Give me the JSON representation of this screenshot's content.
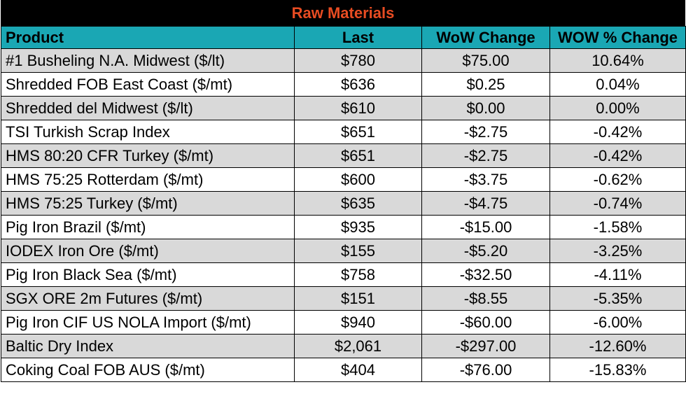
{
  "title": "Raw Materials",
  "columns": [
    "Product",
    "Last",
    "WoW Change",
    "WOW % Change"
  ],
  "rows": [
    {
      "product": "#1 Busheling N.A. Midwest ($/lt)",
      "last": "$780",
      "wow": "$75.00",
      "pct": "10.64%"
    },
    {
      "product": "Shredded FOB East Coast ($/mt)",
      "last": "$636",
      "wow": "$0.25",
      "pct": "0.04%"
    },
    {
      "product": "Shredded del  Midwest ($/lt)",
      "last": "$610",
      "wow": "$0.00",
      "pct": "0.00%"
    },
    {
      "product": "TSI Turkish Scrap Index",
      "last": "$651",
      "wow": "-$2.75",
      "pct": "-0.42%"
    },
    {
      "product": "HMS 80:20 CFR Turkey ($/mt)",
      "last": "$651",
      "wow": "-$2.75",
      "pct": "-0.42%"
    },
    {
      "product": "HMS 75:25 Rotterdam ($/mt)",
      "last": "$600",
      "wow": "-$3.75",
      "pct": "-0.62%"
    },
    {
      "product": "HMS 75:25 Turkey ($/mt)",
      "last": "$635",
      "wow": "-$4.75",
      "pct": "-0.74%"
    },
    {
      "product": "Pig Iron Brazil ($/mt)",
      "last": "$935",
      "wow": "-$15.00",
      "pct": "-1.58%"
    },
    {
      "product": "IODEX  Iron Ore ($/mt)",
      "last": "$155",
      "wow": "-$5.20",
      "pct": "-3.25%"
    },
    {
      "product": "Pig Iron Black Sea ($/mt)",
      "last": "$758",
      "wow": "-$32.50",
      "pct": "-4.11%"
    },
    {
      "product": "SGX ORE 2m Futures ($/mt)",
      "last": "$151",
      "wow": "-$8.55",
      "pct": "-5.35%"
    },
    {
      "product": "Pig Iron CIF US NOLA Import ($/mt)",
      "last": "$940",
      "wow": "-$60.00",
      "pct": "-6.00%"
    },
    {
      "product": "Baltic Dry Index",
      "last": "$2,061",
      "wow": "-$297.00",
      "pct": "-12.60%"
    },
    {
      "product": "Coking Coal FOB AUS ($/mt)",
      "last": "$404",
      "wow": "-$76.00",
      "pct": "-15.83%"
    }
  ]
}
